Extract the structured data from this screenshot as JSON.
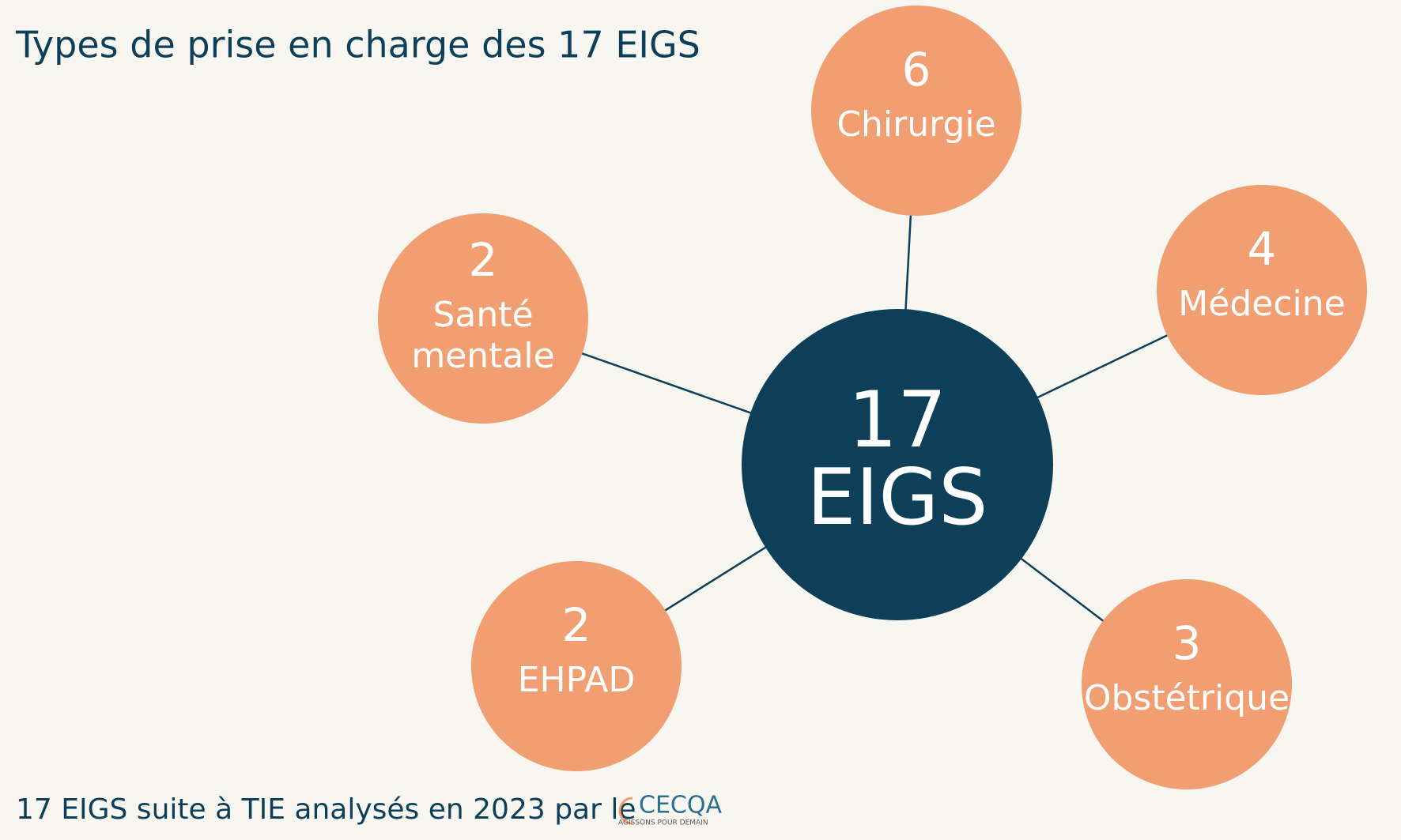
{
  "title": "Types de prise en charge des 17 EIGS",
  "center": {
    "value": 17,
    "label": "EIGS"
  },
  "nodes": [
    {
      "value": 6,
      "label": [
        "Chirurgie"
      ]
    },
    {
      "value": 4,
      "label": [
        "Médecine"
      ]
    },
    {
      "value": 3,
      "label": [
        "Obstétrique"
      ]
    },
    {
      "value": 2,
      "label": [
        "EHPAD"
      ]
    },
    {
      "value": 2,
      "label": [
        "Santé",
        "mentale"
      ]
    }
  ],
  "footer": {
    "text": "17 EIGS suite à TIE analysés en 2023 par le",
    "logo": "CECQA",
    "logo_tagline": "AGISSONS POUR DEMAIN"
  }
}
